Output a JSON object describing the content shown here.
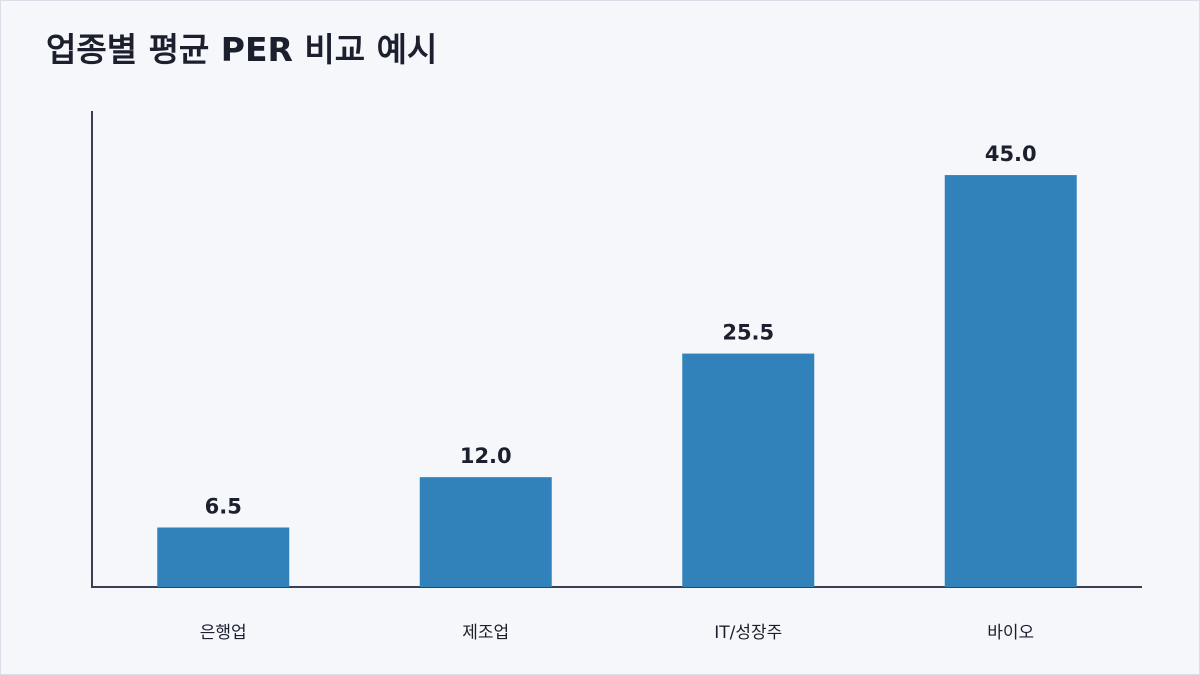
{
  "title": "업종별 평균 PER 비교 예시",
  "colors": {
    "bar": "#3182bb",
    "background": "#f5f7fb",
    "text": "#1c1f2e",
    "axis": "#3b3f4f"
  },
  "chart_data": {
    "type": "bar",
    "title": "업종별 평균 PER 비교 예시",
    "categories": [
      "은행업",
      "제조업",
      "IT/성장주",
      "바이오"
    ],
    "values": [
      6.5,
      12.0,
      25.5,
      45.0
    ],
    "value_labels": [
      "6.5",
      "12.0",
      "25.5",
      "45.0"
    ],
    "xlabel": "",
    "ylabel": "",
    "ylim": [
      0,
      52
    ],
    "grid": false,
    "legend": "none"
  }
}
